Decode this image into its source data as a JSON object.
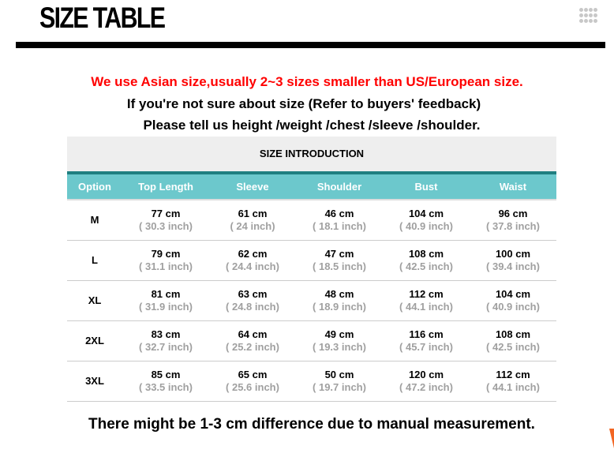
{
  "header": {
    "title": "SIZE TABLE",
    "menu_icon": "grid-dots-icon"
  },
  "notes": [
    "We use Asian size,usually 2~3 sizes smaller than US/European size.",
    "If you're not sure about size  (Refer to buyers' feedback)",
    "Please tell us height /weight /chest /sleeve /shoulder."
  ],
  "table": {
    "caption": "SIZE INTRODUCTION",
    "headers": [
      "Option",
      "Top Length",
      "Sleeve",
      "Shoulder",
      "Bust",
      "Waist"
    ],
    "rows": [
      {
        "size": "M",
        "cells": [
          [
            "77 cm",
            "( 30.3 inch)"
          ],
          [
            "61 cm",
            "( 24 inch)"
          ],
          [
            "46 cm",
            "( 18.1 inch)"
          ],
          [
            "104 cm",
            "( 40.9 inch)"
          ],
          [
            "96 cm",
            "( 37.8 inch)"
          ]
        ]
      },
      {
        "size": "L",
        "cells": [
          [
            "79 cm",
            "( 31.1 inch)"
          ],
          [
            "62 cm",
            "( 24.4 inch)"
          ],
          [
            "47 cm",
            "( 18.5 inch)"
          ],
          [
            "108 cm",
            "( 42.5 inch)"
          ],
          [
            "100 cm",
            "( 39.4 inch)"
          ]
        ]
      },
      {
        "size": "XL",
        "cells": [
          [
            "81 cm",
            "( 31.9 inch)"
          ],
          [
            "63 cm",
            "( 24.8 inch)"
          ],
          [
            "48 cm",
            "( 18.9 inch)"
          ],
          [
            "112 cm",
            "( 44.1 inch)"
          ],
          [
            "104 cm",
            "( 40.9 inch)"
          ]
        ]
      },
      {
        "size": "2XL",
        "cells": [
          [
            "83 cm",
            "( 32.7 inch)"
          ],
          [
            "64 cm",
            "( 25.2 inch)"
          ],
          [
            "49 cm",
            "( 19.3 inch)"
          ],
          [
            "116 cm",
            "( 45.7 inch)"
          ],
          [
            "108 cm",
            "( 42.5 inch)"
          ]
        ]
      },
      {
        "size": "3XL",
        "cells": [
          [
            "85 cm",
            "( 33.5 inch)"
          ],
          [
            "65 cm",
            "( 25.6 inch)"
          ],
          [
            "50 cm",
            "( 19.7 inch)"
          ],
          [
            "120 cm",
            "( 47.2 inch)"
          ],
          [
            "112 cm",
            "( 44.1 inch)"
          ]
        ]
      }
    ]
  },
  "footer": "There might be 1-3 cm difference due to manual measurement.",
  "colors": {
    "warning": "#ff0000",
    "header_bg": "#6cc8cc",
    "accent_line": "#1f7f80"
  }
}
